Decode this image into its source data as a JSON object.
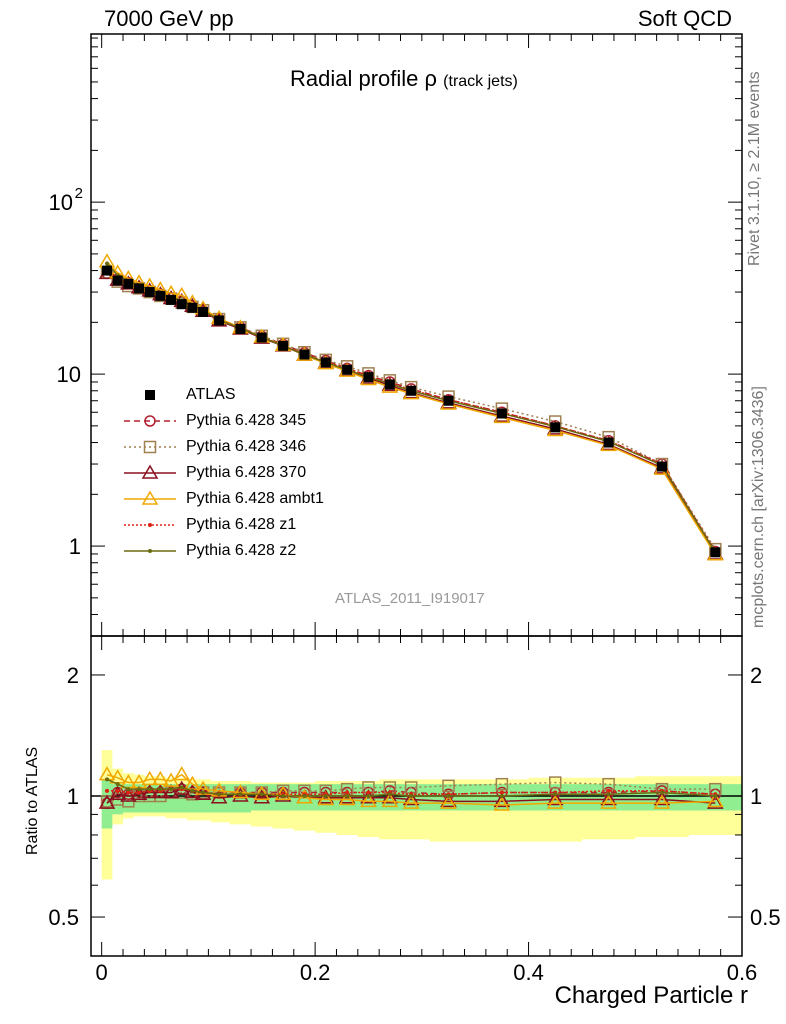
{
  "header": {
    "left": "7000 GeV pp",
    "right": "Soft QCD"
  },
  "side_texts": {
    "rivet": "Rivet 3.1.10, ≥ 2.1M events",
    "mcplots": "mcplots.cern.ch [arXiv:1306.3436]"
  },
  "watermark": "ATLAS_2011_I919017",
  "chart_data": [
    {
      "type": "line",
      "title": "Radial profile",
      "title_symbol": "ρ",
      "title_sub": "(track jets)",
      "xlabel": "Charged Particle r",
      "ylabel": "",
      "yscale": "log",
      "xlim": [
        -0.01,
        0.6
      ],
      "ylim": [
        0.3,
        950
      ],
      "ytick_labels": [
        "1",
        "10",
        "10^2"
      ],
      "x": [
        0.005,
        0.015,
        0.025,
        0.035,
        0.045,
        0.055,
        0.065,
        0.075,
        0.085,
        0.095,
        0.11,
        0.13,
        0.15,
        0.17,
        0.19,
        0.21,
        0.23,
        0.25,
        0.27,
        0.29,
        0.325,
        0.375,
        0.425,
        0.475,
        0.525,
        0.575
      ],
      "series": [
        {
          "name": "ATLAS",
          "color": "#000000",
          "marker": "square",
          "values": [
            40,
            35,
            33.5,
            31.5,
            30,
            28.5,
            27,
            25.5,
            24.3,
            23,
            20.5,
            18.3,
            16.3,
            14.6,
            13,
            11.7,
            10.6,
            9.6,
            8.7,
            8,
            7,
            5.9,
            4.9,
            4,
            2.9,
            0.92
          ]
        },
        {
          "name": "Pythia 6.428 345",
          "color": "#b02030",
          "marker": "circle",
          "dash": "6,4",
          "values": [
            38.5,
            35.7,
            34,
            32,
            30.5,
            29.2,
            27.6,
            26.6,
            24.8,
            23.3,
            20.9,
            18.7,
            16.6,
            14.9,
            13.3,
            12,
            10.8,
            9.8,
            9,
            8.2,
            7.1,
            6,
            5,
            4.1,
            3,
            0.93
          ]
        },
        {
          "name": "Pythia 6.428 346",
          "color": "#a08050",
          "marker": "opensquare",
          "dash": "2,3",
          "values": [
            39,
            34.5,
            32.5,
            31.5,
            30,
            28.5,
            27.5,
            26,
            24.6,
            23.5,
            20.9,
            18.7,
            16.7,
            15,
            13.4,
            12.1,
            11.1,
            10.1,
            9.2,
            8.4,
            7.4,
            6.3,
            5.3,
            4.3,
            3,
            0.96
          ]
        },
        {
          "name": "Pythia 6.428 370",
          "color": "#8a1020",
          "marker": "triangle",
          "values": [
            38.5,
            35.2,
            33.5,
            31.8,
            30.5,
            29,
            27.5,
            26.5,
            24.8,
            23.2,
            20.4,
            18.3,
            16.2,
            14.6,
            12.9,
            11.6,
            10.5,
            9.5,
            8.6,
            7.8,
            6.8,
            5.7,
            4.8,
            3.9,
            2.85,
            0.9
          ]
        },
        {
          "name": "Pythia 6.428 ambt1",
          "color": "#f0a800",
          "marker": "triangle",
          "values": [
            45,
            38.8,
            36,
            34,
            32.5,
            31,
            29.5,
            28.7,
            26,
            24,
            21.1,
            18.6,
            16.4,
            14.7,
            12.9,
            11.5,
            10.4,
            9.3,
            8.4,
            7.7,
            6.7,
            5.6,
            4.7,
            3.85,
            2.8,
            0.89
          ]
        },
        {
          "name": "Pythia 6.428 z1",
          "color": "#e02010",
          "marker": "dot",
          "dash": "2,2",
          "values": [
            41,
            36,
            34,
            32.2,
            30.8,
            29.3,
            28,
            26.5,
            25,
            23.4,
            20.7,
            18.5,
            16.4,
            14.7,
            13.1,
            11.8,
            10.8,
            9.8,
            8.9,
            8.1,
            7.1,
            6,
            5,
            4.1,
            3,
            0.93
          ]
        },
        {
          "name": "Pythia 6.428 z2",
          "color": "#6b6b10",
          "marker": "dot",
          "values": [
            44,
            37.5,
            34.8,
            32.7,
            31.1,
            29.5,
            28,
            26.9,
            25.1,
            23.5,
            20.6,
            18.5,
            16.4,
            14.6,
            13,
            11.7,
            10.6,
            9.6,
            8.8,
            8,
            7,
            5.9,
            4.95,
            4.05,
            2.95,
            0.92
          ]
        }
      ]
    },
    {
      "type": "line",
      "xlabel": "Charged Particle r",
      "ylabel": "Ratio to ATLAS",
      "yscale": "log",
      "xlim": [
        -0.01,
        0.6
      ],
      "ylim": [
        0.4,
        2.5
      ],
      "ytick_labels": [
        "0.5",
        "1",
        "2"
      ],
      "x": [
        0.005,
        0.015,
        0.025,
        0.035,
        0.045,
        0.055,
        0.065,
        0.075,
        0.085,
        0.095,
        0.11,
        0.13,
        0.15,
        0.17,
        0.19,
        0.21,
        0.23,
        0.25,
        0.27,
        0.29,
        0.325,
        0.375,
        0.425,
        0.475,
        0.525,
        0.575
      ],
      "band_stat_syst": {
        "name": "ATLAS total uncertainty",
        "color": "#ffff99",
        "low": [
          0.62,
          0.85,
          0.88,
          0.89,
          0.89,
          0.89,
          0.88,
          0.88,
          0.87,
          0.87,
          0.86,
          0.85,
          0.84,
          0.83,
          0.82,
          0.81,
          0.8,
          0.79,
          0.78,
          0.78,
          0.77,
          0.77,
          0.77,
          0.78,
          0.79,
          0.8
        ],
        "high": [
          1.3,
          1.17,
          1.14,
          1.13,
          1.12,
          1.12,
          1.11,
          1.11,
          1.1,
          1.1,
          1.09,
          1.09,
          1.08,
          1.08,
          1.08,
          1.09,
          1.09,
          1.09,
          1.1,
          1.1,
          1.1,
          1.1,
          1.11,
          1.11,
          1.12,
          1.12
        ]
      },
      "band_stat": {
        "name": "ATLAS stat. uncertainty",
        "color": "#90ee90",
        "low": [
          0.83,
          0.9,
          0.91,
          0.91,
          0.91,
          0.91,
          0.91,
          0.91,
          0.91,
          0.91,
          0.91,
          0.91,
          0.92,
          0.92,
          0.92,
          0.92,
          0.92,
          0.92,
          0.92,
          0.92,
          0.92,
          0.92,
          0.92,
          0.92,
          0.92,
          0.92
        ],
        "high": [
          1.1,
          1.07,
          1.07,
          1.07,
          1.07,
          1.07,
          1.07,
          1.07,
          1.07,
          1.07,
          1.07,
          1.07,
          1.07,
          1.07,
          1.07,
          1.07,
          1.07,
          1.07,
          1.07,
          1.07,
          1.07,
          1.07,
          1.07,
          1.07,
          1.07,
          1.07
        ]
      },
      "series": [
        {
          "name": "Pythia 6.428 345",
          "values": [
            0.96,
            1.02,
            1.01,
            1.02,
            1.02,
            1.02,
            1.02,
            1.04,
            1.02,
            1.01,
            1.02,
            1.02,
            1.02,
            1.02,
            1.02,
            1.02,
            1.02,
            1.02,
            1.03,
            1.02,
            1.01,
            1.02,
            1.02,
            1.02,
            1.03,
            1.01
          ]
        },
        {
          "name": "Pythia 6.428 346",
          "values": [
            0.97,
            0.98,
            0.97,
            1.0,
            1.0,
            1.0,
            1.02,
            1.02,
            1.01,
            1.02,
            1.02,
            1.02,
            1.02,
            1.03,
            1.03,
            1.03,
            1.04,
            1.05,
            1.05,
            1.05,
            1.06,
            1.07,
            1.08,
            1.07,
            1.04,
            1.04
          ]
        },
        {
          "name": "Pythia 6.428 370",
          "values": [
            0.96,
            1.01,
            1.0,
            1.01,
            1.02,
            1.02,
            1.02,
            1.04,
            1.02,
            1.01,
            0.99,
            1.0,
            0.99,
            1.0,
            0.99,
            0.99,
            0.99,
            0.99,
            0.99,
            0.98,
            0.97,
            0.97,
            0.98,
            0.98,
            0.98,
            0.96
          ]
        },
        {
          "name": "Pythia 6.428 ambt1",
          "values": [
            1.13,
            1.11,
            1.08,
            1.08,
            1.1,
            1.1,
            1.09,
            1.13,
            1.07,
            1.04,
            1.03,
            1.02,
            1.01,
            1.01,
            0.99,
            0.98,
            0.98,
            0.97,
            0.97,
            0.96,
            0.96,
            0.95,
            0.96,
            0.96,
            0.96,
            0.97
          ]
        },
        {
          "name": "Pythia 6.428 z1",
          "values": [
            1.03,
            1.03,
            1.02,
            1.02,
            1.03,
            1.03,
            1.04,
            1.04,
            1.03,
            1.02,
            1.01,
            1.01,
            1.01,
            1.01,
            1.01,
            1.01,
            1.02,
            1.02,
            1.02,
            1.01,
            1.01,
            1.02,
            1.02,
            1.03,
            1.03,
            1.01
          ]
        },
        {
          "name": "Pythia 6.428 z2",
          "values": [
            1.1,
            1.07,
            1.04,
            1.04,
            1.04,
            1.04,
            1.04,
            1.05,
            1.03,
            1.02,
            1.01,
            1.01,
            1.01,
            1.0,
            1.0,
            1.0,
            1.0,
            1.0,
            1.01,
            1.0,
            1.0,
            1.0,
            1.01,
            1.01,
            1.02,
            1.0
          ]
        }
      ]
    }
  ],
  "xtick_labels": [
    "0",
    "0.2",
    "0.4",
    "0.6"
  ]
}
